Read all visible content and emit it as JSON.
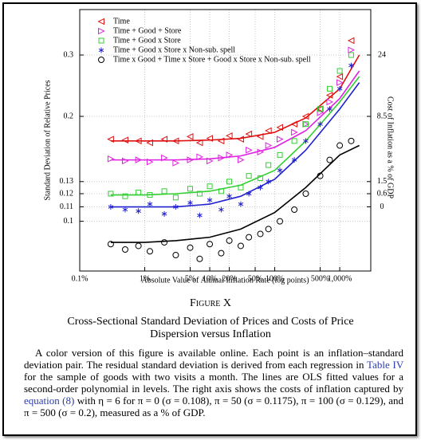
{
  "chart_data": {
    "type": "scatter",
    "xlabel": "Absolute Value of Annual Inflation Rate (log points)",
    "ylabel": "Standard Deviation of Relative Prices",
    "y2label": "Cost of Inflation as a % of GDP",
    "xlog": true,
    "ylog": true,
    "grid": true,
    "legend": "upper left",
    "xlim": [
      0.1,
      3000
    ],
    "ylim": [
      0.072,
      0.405
    ],
    "xticks": [
      {
        "value": 0.1,
        "label": "0.1%"
      },
      {
        "value": 1,
        "label": "1%"
      },
      {
        "value": 5,
        "label": "5%"
      },
      {
        "value": 10,
        "label": "10%"
      },
      {
        "value": 20,
        "label": "20%"
      },
      {
        "value": 50,
        "label": "50%"
      },
      {
        "value": 100,
        "label": "100%"
      },
      {
        "value": 500,
        "label": "500%"
      },
      {
        "value": 1000,
        "label": "1,000%"
      }
    ],
    "yticks": [
      0.1,
      0.11,
      0.12,
      0.13,
      0.2,
      0.3
    ],
    "y2ticks": [
      0,
      0.6,
      1.5,
      8.5,
      24
    ],
    "y2_at": [
      0.11,
      0.12,
      0.13,
      0.2,
      0.3
    ],
    "fit_x": [
      0.3,
      1,
      3,
      10,
      30,
      100,
      300,
      1000,
      2000
    ],
    "series": [
      {
        "name": "Time",
        "color": "#e01010",
        "marker": "triangle-left",
        "x": [
          0.3,
          0.5,
          0.8,
          1.2,
          2,
          3,
          5,
          7,
          10,
          15,
          20,
          30,
          40,
          60,
          80,
          120,
          200,
          300,
          500,
          700,
          1000,
          1500
        ],
        "y": [
          0.172,
          0.171,
          0.17,
          0.168,
          0.172,
          0.17,
          0.175,
          0.168,
          0.173,
          0.17,
          0.176,
          0.172,
          0.178,
          0.175,
          0.182,
          0.186,
          0.19,
          0.2,
          0.21,
          0.23,
          0.26,
          0.33
        ],
        "fit": [
          0.17,
          0.17,
          0.17,
          0.171,
          0.173,
          0.18,
          0.198,
          0.24,
          0.3
        ]
      },
      {
        "name": "Time + Good + Store",
        "color": "#e020e0",
        "marker": "triangle-right",
        "x": [
          0.3,
          0.5,
          0.8,
          1.2,
          2,
          3,
          5,
          7,
          10,
          15,
          20,
          30,
          40,
          60,
          80,
          120,
          200,
          300,
          500,
          700,
          1000,
          1500
        ],
        "y": [
          0.151,
          0.149,
          0.15,
          0.148,
          0.152,
          0.147,
          0.15,
          0.153,
          0.149,
          0.152,
          0.155,
          0.15,
          0.16,
          0.158,
          0.165,
          0.172,
          0.18,
          0.19,
          0.205,
          0.22,
          0.25,
          0.31
        ],
        "fit": [
          0.15,
          0.15,
          0.15,
          0.151,
          0.154,
          0.163,
          0.182,
          0.225,
          0.27
        ]
      },
      {
        "name": "Time + Good x Store",
        "color": "#30d030",
        "marker": "square",
        "x": [
          0.3,
          0.5,
          0.8,
          1.2,
          2,
          3,
          5,
          7,
          10,
          15,
          20,
          30,
          40,
          60,
          80,
          120,
          200,
          300,
          500,
          700,
          1000,
          1500
        ],
        "y": [
          0.12,
          0.118,
          0.121,
          0.119,
          0.122,
          0.117,
          0.124,
          0.12,
          0.126,
          0.122,
          0.13,
          0.125,
          0.135,
          0.133,
          0.145,
          0.155,
          0.17,
          0.19,
          0.21,
          0.24,
          0.27,
          0.3
        ],
        "fit": [
          0.119,
          0.119,
          0.12,
          0.122,
          0.127,
          0.14,
          0.17,
          0.22,
          0.26
        ]
      },
      {
        "name": "Time + Good x Store x Non-sub. spell",
        "color": "#2020d0",
        "marker": "star",
        "x": [
          0.3,
          0.5,
          0.8,
          1.2,
          2,
          3,
          5,
          7,
          10,
          15,
          20,
          30,
          40,
          60,
          80,
          120,
          200,
          300,
          500,
          700,
          1000,
          1500
        ],
        "y": [
          0.11,
          0.108,
          0.107,
          0.112,
          0.105,
          0.11,
          0.113,
          0.104,
          0.115,
          0.108,
          0.118,
          0.112,
          0.12,
          0.125,
          0.13,
          0.14,
          0.15,
          0.17,
          0.19,
          0.21,
          0.24,
          0.28
        ],
        "fit": [
          0.11,
          0.11,
          0.11,
          0.112,
          0.118,
          0.132,
          0.16,
          0.21,
          0.25
        ]
      },
      {
        "name": "Time x Good + Time x Store + Good x Store x Non-sub. spell",
        "color": "#000000",
        "marker": "circle",
        "x": [
          0.3,
          0.5,
          0.8,
          1.2,
          2,
          3,
          5,
          7,
          10,
          15,
          20,
          30,
          40,
          60,
          80,
          120,
          200,
          300,
          500,
          700,
          1000,
          1500
        ],
        "y": [
          0.086,
          0.083,
          0.085,
          0.082,
          0.087,
          0.08,
          0.084,
          0.078,
          0.086,
          0.081,
          0.088,
          0.085,
          0.09,
          0.092,
          0.095,
          0.1,
          0.108,
          0.12,
          0.135,
          0.15,
          0.165,
          0.17
        ],
        "fit": [
          0.087,
          0.087,
          0.088,
          0.09,
          0.095,
          0.106,
          0.125,
          0.155,
          0.165
        ]
      }
    ]
  },
  "figure_label": "Figure X",
  "caption_title": "Cross-Sectional Standard Deviation of Prices and Costs of Price Dispersion versus Inflation",
  "caption_body": [
    "A color version of this figure is available online. Each point is an inflation–standard deviation pair. The residual standard deviation is derived from each regression in ",
    "Table IV",
    " for the sample of goods with two visits a month. The lines are OLS fitted values for a second-order polynomial in levels. The right axis shows the costs of inflation captured by ",
    "equation (8)",
    " with η = 6 for π = 0 (σ = 0.108), π = 50 (σ = 0.1175), π = 100 (σ = 0.129), and π = 500 (σ = 0.2), measured as a % of GDP."
  ]
}
